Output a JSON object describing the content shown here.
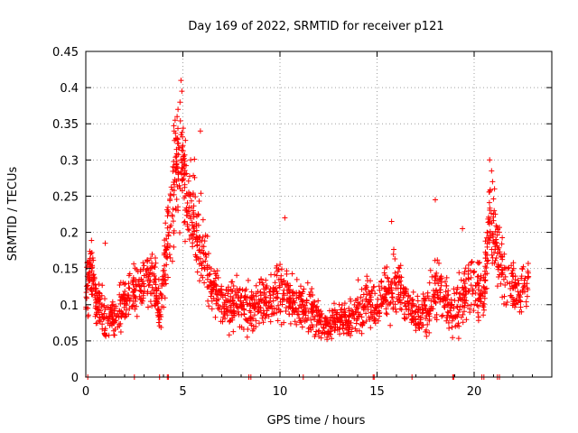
{
  "chart_data": {
    "type": "scatter",
    "title": "Day 169 of 2022, SRMTID for receiver p121",
    "xlabel": "GPS time / hours",
    "ylabel": "SRMTID / TECUs",
    "xlim": [
      0,
      24
    ],
    "ylim": [
      0,
      0.45
    ],
    "grid": true,
    "x_ticks": [
      0,
      5,
      10,
      15,
      20
    ],
    "x_tick_labels": [
      "0",
      "5",
      "10",
      "15",
      "20"
    ],
    "y_ticks": [
      0,
      0.05,
      0.1,
      0.15,
      0.2,
      0.25,
      0.3,
      0.35,
      0.4,
      0.45
    ],
    "y_tick_labels": [
      "0",
      "0.05",
      "0.1",
      "0.15",
      "0.2",
      "0.25",
      "0.3",
      "0.35",
      "0.4",
      "0.45"
    ],
    "marker": "+",
    "color": "#ff0000",
    "envelope": [
      [
        0.0,
        0.12,
        0.04
      ],
      [
        0.3,
        0.15,
        0.04
      ],
      [
        0.6,
        0.1,
        0.03
      ],
      [
        1.0,
        0.09,
        0.03
      ],
      [
        1.5,
        0.08,
        0.02
      ],
      [
        2.0,
        0.11,
        0.03
      ],
      [
        2.5,
        0.12,
        0.03
      ],
      [
        3.0,
        0.13,
        0.03
      ],
      [
        3.5,
        0.14,
        0.04
      ],
      [
        3.8,
        0.09,
        0.04
      ],
      [
        4.2,
        0.18,
        0.05
      ],
      [
        4.6,
        0.28,
        0.07
      ],
      [
        4.9,
        0.3,
        0.07
      ],
      [
        5.2,
        0.26,
        0.06
      ],
      [
        5.6,
        0.22,
        0.06
      ],
      [
        6.0,
        0.17,
        0.05
      ],
      [
        6.5,
        0.12,
        0.04
      ],
      [
        7.0,
        0.1,
        0.03
      ],
      [
        7.5,
        0.1,
        0.03
      ],
      [
        8.0,
        0.1,
        0.03
      ],
      [
        8.5,
        0.09,
        0.03
      ],
      [
        9.0,
        0.1,
        0.03
      ],
      [
        9.5,
        0.11,
        0.03
      ],
      [
        10.0,
        0.12,
        0.04
      ],
      [
        10.5,
        0.11,
        0.03
      ],
      [
        11.0,
        0.1,
        0.03
      ],
      [
        11.5,
        0.09,
        0.03
      ],
      [
        12.0,
        0.08,
        0.02
      ],
      [
        12.5,
        0.07,
        0.02
      ],
      [
        13.0,
        0.08,
        0.02
      ],
      [
        13.5,
        0.08,
        0.02
      ],
      [
        14.0,
        0.09,
        0.03
      ],
      [
        14.5,
        0.11,
        0.03
      ],
      [
        15.0,
        0.1,
        0.03
      ],
      [
        15.5,
        0.12,
        0.04
      ],
      [
        16.0,
        0.13,
        0.04
      ],
      [
        16.5,
        0.1,
        0.03
      ],
      [
        17.0,
        0.08,
        0.02
      ],
      [
        17.5,
        0.09,
        0.03
      ],
      [
        18.0,
        0.12,
        0.04
      ],
      [
        18.5,
        0.1,
        0.03
      ],
      [
        19.0,
        0.09,
        0.03
      ],
      [
        19.5,
        0.12,
        0.04
      ],
      [
        20.0,
        0.13,
        0.04
      ],
      [
        20.5,
        0.11,
        0.03
      ],
      [
        20.8,
        0.22,
        0.06
      ],
      [
        21.2,
        0.17,
        0.04
      ],
      [
        21.7,
        0.13,
        0.03
      ],
      [
        22.2,
        0.12,
        0.03
      ],
      [
        22.8,
        0.13,
        0.03
      ]
    ],
    "peaks": [
      [
        4.55,
        0.34
      ],
      [
        4.6,
        0.355
      ],
      [
        4.75,
        0.37
      ],
      [
        4.85,
        0.38
      ],
      [
        4.9,
        0.41
      ],
      [
        4.95,
        0.395
      ],
      [
        4.65,
        0.33
      ],
      [
        5.0,
        0.32
      ],
      [
        5.4,
        0.3
      ],
      [
        5.9,
        0.34
      ],
      [
        4.7,
        0.36
      ],
      [
        20.8,
        0.3
      ],
      [
        20.9,
        0.285
      ],
      [
        20.95,
        0.27
      ],
      [
        21.05,
        0.26
      ],
      [
        10.25,
        0.22
      ],
      [
        15.75,
        0.215
      ],
      [
        18.0,
        0.245
      ],
      [
        19.4,
        0.205
      ],
      [
        1.0,
        0.185
      ]
    ],
    "zero_markers": [
      0.1,
      2.5,
      3.8,
      4.2,
      4.25,
      8.4,
      8.5,
      11.2,
      14.8,
      14.85,
      16.8,
      18.9,
      18.95,
      20.4,
      20.5,
      21.2,
      21.3
    ],
    "samples_per_interval": 42
  }
}
